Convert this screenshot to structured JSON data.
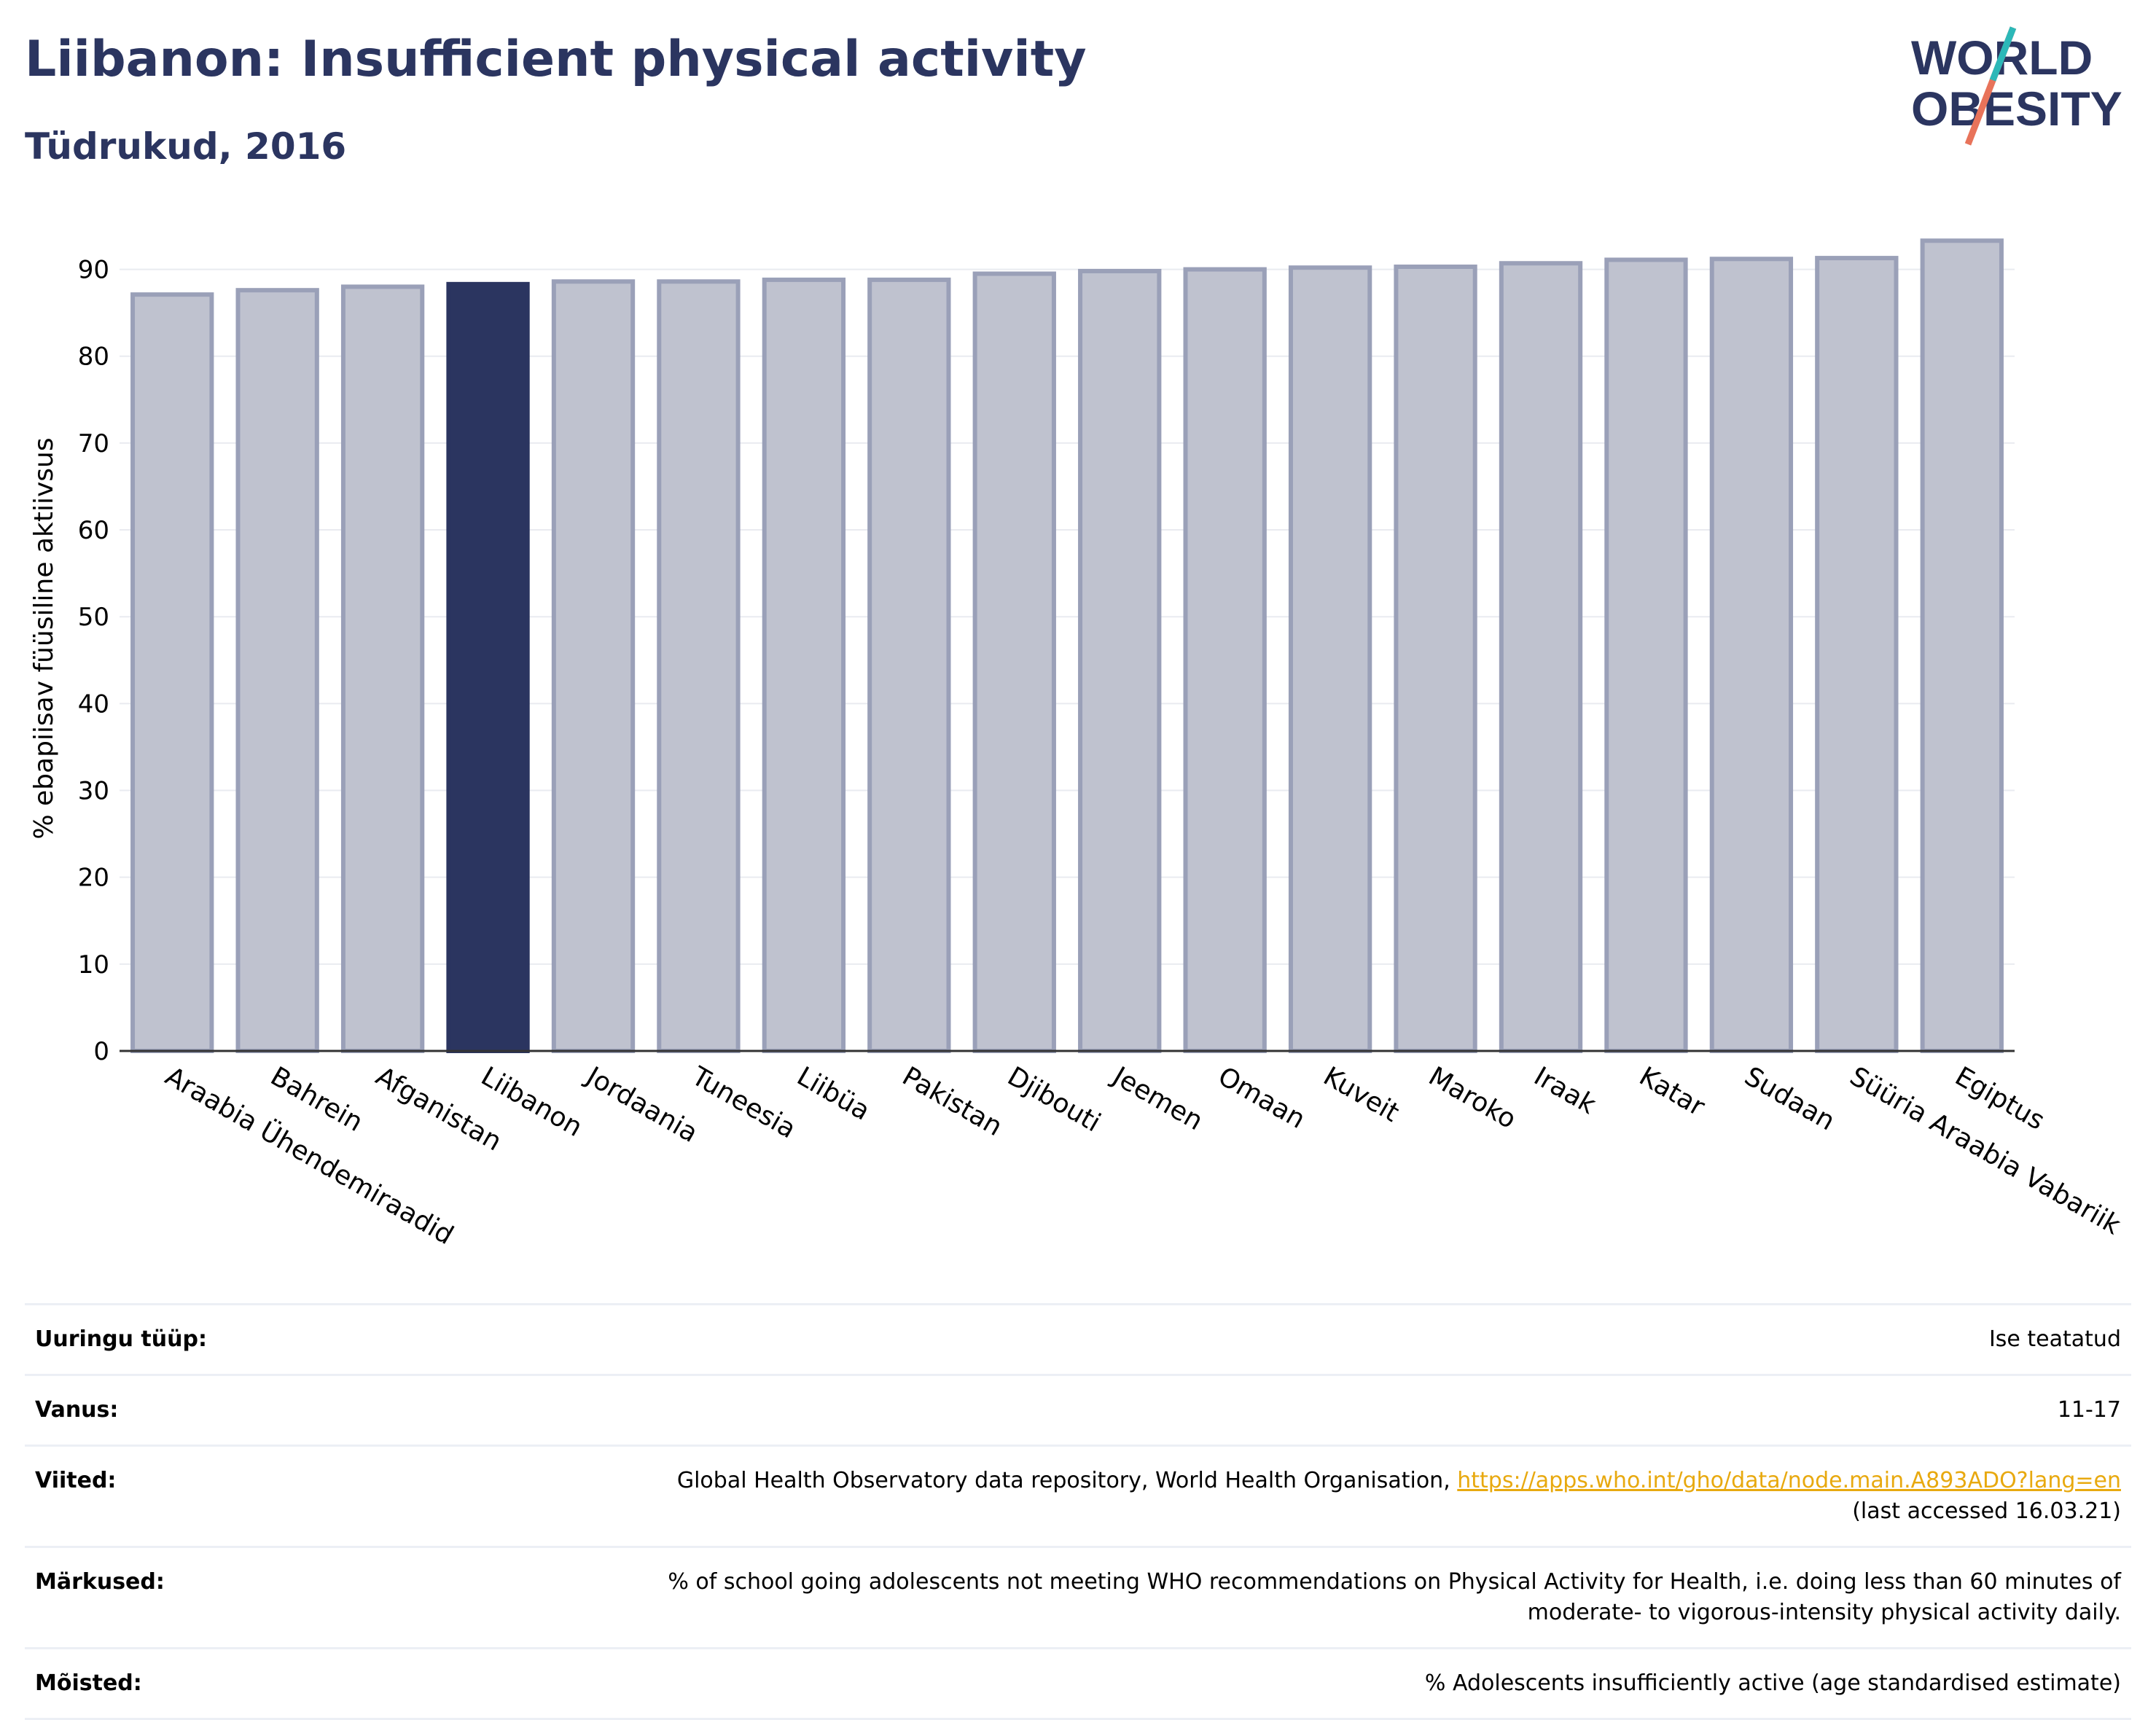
{
  "header": {
    "title": "Liibanon: Insufficient physical activity",
    "subtitle": "Tüdrukud, 2016"
  },
  "logo": {
    "line1": "WORLD",
    "line2": "OBESITY"
  },
  "chart_data": {
    "type": "bar",
    "ylabel": "% ebapiisav füüsiline aktiivsus",
    "xlabel": "",
    "ylim": [
      0,
      95
    ],
    "yticks": [
      0,
      10,
      20,
      30,
      40,
      50,
      60,
      70,
      80,
      90
    ],
    "grid": true,
    "categories": [
      "Araabia Ühendemiraadid",
      "Bahrein",
      "Afganistan",
      "Liibanon",
      "Jordaania",
      "Tuneesia",
      "Liibüa",
      "Pakistan",
      "Djibouti",
      "Jeemen",
      "Omaan",
      "Kuveit",
      "Maroko",
      "Iraak",
      "Katar",
      "Sudaan",
      "Süüria Araabia Vabariik",
      "Egiptus"
    ],
    "values": [
      87.1,
      87.6,
      88.0,
      88.3,
      88.6,
      88.6,
      88.8,
      88.8,
      89.5,
      89.8,
      90.0,
      90.2,
      90.3,
      90.7,
      91.1,
      91.2,
      91.3,
      93.3
    ],
    "highlight": "Liibanon",
    "colors": {
      "highlight": "#2b3560",
      "other": "#bfc2cf",
      "other_border": "#9aa0b8"
    }
  },
  "notes": [
    {
      "label": "Uuringu tüüp:",
      "value": "Ise teatatud"
    },
    {
      "label": "Vanus:",
      "value": "11-17"
    },
    {
      "label": "Viited:",
      "value": "Global Health Observatory data repository, World Health Organisation, ",
      "link": "https://apps.who.int/gho/data/node.main.A893ADO?lang=en",
      "value2": "(last accessed 16.03.21)"
    },
    {
      "label": "Märkused:",
      "value": "% of school going adolescents not meeting WHO recommendations on Physical Activity for Health, i.e. doing less than 60 minutes of",
      "value2": "moderate- to vigorous-intensity physical activity daily."
    },
    {
      "label": "Mõisted:",
      "value": "% Adolescents insufficiently active (age standardised estimate)"
    }
  ]
}
